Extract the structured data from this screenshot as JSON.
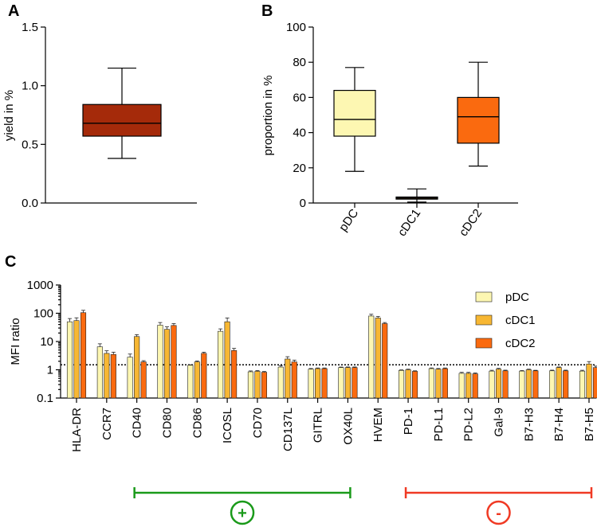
{
  "panel_labels": {
    "a": "A",
    "b": "B",
    "c": "C"
  },
  "chart_data": [
    {
      "id": "A",
      "type": "box",
      "ylabel": "yield in %",
      "ylim": [
        0,
        1.5
      ],
      "yticks": [
        "0.0",
        "0.5",
        "1.0",
        "1.5"
      ],
      "boxes": [
        {
          "name": "",
          "min": 0.38,
          "q1": 0.57,
          "median": 0.68,
          "q3": 0.84,
          "max": 1.15,
          "color": "#a52a0a"
        }
      ]
    },
    {
      "id": "B",
      "type": "box",
      "ylabel": "proportion in %",
      "ylim": [
        0,
        100
      ],
      "yticks": [
        "0",
        "20",
        "40",
        "60",
        "80",
        "100"
      ],
      "categories": [
        "pDC",
        "cDC1",
        "cDC2"
      ],
      "boxes": [
        {
          "name": "pDC",
          "min": 18,
          "q1": 38,
          "median": 47.5,
          "q3": 64,
          "max": 77,
          "color": "#fdf7b2"
        },
        {
          "name": "cDC1",
          "min": 0.5,
          "q1": 2.2,
          "median": 2.8,
          "q3": 3.4,
          "max": 8,
          "color": "#f7b733"
        },
        {
          "name": "cDC2",
          "min": 21,
          "q1": 34,
          "median": 49,
          "q3": 60,
          "max": 80,
          "color": "#fa6a0f"
        }
      ]
    },
    {
      "id": "C",
      "type": "bar",
      "yscale": "log",
      "ylabel": "MFI ratio",
      "ylim": [
        0.1,
        1000
      ],
      "yticks": [
        "0.1",
        "1",
        "10",
        "100",
        "1000"
      ],
      "reference_line": 1.5,
      "categories": [
        "HLA-DR",
        "CCR7",
        "CD40",
        "CD80",
        "CD86",
        "ICOSL",
        "CD70",
        "CD137L",
        "GITRL",
        "OX40L",
        "HVEM",
        "PD-1",
        "PD-L1",
        "PD-L2",
        "Gal-9",
        "B7-H3",
        "B7-H4",
        "B7-H5"
      ],
      "series": [
        {
          "name": "pDC",
          "color": "#fdf7b2",
          "values": [
            50,
            6.5,
            2.8,
            38,
            1.45,
            23,
            0.85,
            1.25,
            1.05,
            1.2,
            80,
            0.95,
            1.1,
            0.75,
            0.9,
            0.9,
            0.92,
            0.9
          ],
          "errors": [
            12,
            1.5,
            0.6,
            7,
            0.05,
            4,
            0.05,
            0.1,
            0.05,
            0.05,
            10,
            0.03,
            0.05,
            0.05,
            0.05,
            0.03,
            0.04,
            0.05
          ]
        },
        {
          "name": "cDC1",
          "color": "#f7b733",
          "values": [
            55,
            3.8,
            15,
            27,
            1.9,
            50,
            0.88,
            2.4,
            1.1,
            1.2,
            68,
            1.0,
            1.05,
            0.75,
            1.05,
            1.0,
            1.2,
            1.6
          ]
        },
        {
          "name": "cDC2",
          "color": "#fa6a0f",
          "values": [
            105,
            3.5,
            1.9,
            37,
            3.8,
            4.8,
            0.82,
            1.9,
            1.1,
            1.2,
            43,
            0.88,
            1.1,
            0.72,
            0.92,
            0.92,
            0.92,
            1.2
          ]
        }
      ],
      "errors_hi": [
        [
          15,
          1.8,
          0.8,
          9,
          0.05,
          5,
          0.06,
          0.12,
          0.06,
          0.05,
          12,
          0.04,
          0.06,
          0.06,
          0.06,
          0.04,
          0.05,
          0.06
        ],
        [
          14,
          0.9,
          2.5,
          6,
          0.15,
          18,
          0.06,
          0.5,
          0.06,
          0.06,
          9,
          0.05,
          0.06,
          0.06,
          0.07,
          0.05,
          0.06,
          0.35
        ],
        [
          22,
          0.7,
          0.2,
          6,
          0.4,
          0.9,
          0.05,
          0.3,
          0.06,
          0.06,
          4,
          0.04,
          0.06,
          0.05,
          0.05,
          0.04,
          0.05,
          0.15
        ]
      ],
      "groups": [
        {
          "label": "+",
          "from": "CD40",
          "to": "OX40L",
          "color": "#1a9a1a"
        },
        {
          "label": "-",
          "from": "PD-1",
          "to": "B7-H5",
          "color": "#f03a24"
        }
      ]
    }
  ]
}
